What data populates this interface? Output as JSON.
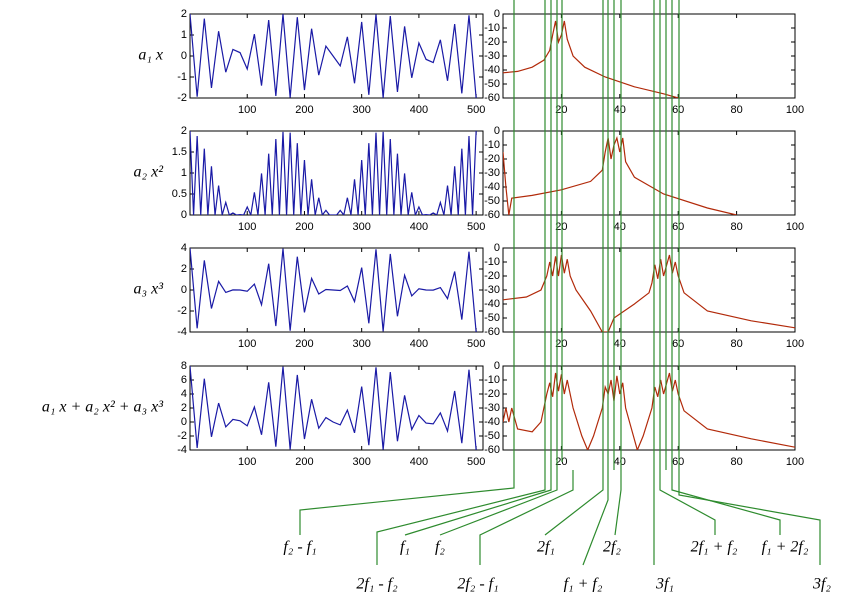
{
  "chart_data": [
    {
      "type": "line",
      "ylabel": "a₁ x",
      "color": "#1a1aa6",
      "xlim": [
        0,
        512
      ],
      "ylim": [
        -2,
        2
      ],
      "xticks": [
        100,
        200,
        300,
        400,
        500
      ],
      "yticks": [
        -2,
        -1,
        0,
        1,
        2
      ],
      "x": [
        0,
        12.5,
        25,
        37.5,
        50,
        62.5,
        75,
        87.5,
        100,
        112.5,
        125,
        137.5,
        150,
        162.5,
        175,
        187.5,
        200,
        212.5,
        225,
        237.5,
        250,
        262.5,
        275,
        287.5,
        300,
        312.5,
        325,
        337.5,
        350,
        362.5,
        375,
        387.5,
        400,
        412.5,
        425,
        437.5,
        450,
        462.5,
        475,
        487.5,
        500
      ],
      "values": [
        2,
        -1.94,
        1.78,
        -1.52,
        1.18,
        -0.77,
        0.31,
        0.16,
        -0.62,
        1.04,
        -1.41,
        1.71,
        -1.9,
        1.99,
        -1.98,
        1.85,
        -1.62,
        1.3,
        -0.91,
        0.47,
        0,
        -0.47,
        0.91,
        -1.3,
        1.62,
        -1.85,
        1.98,
        -1.99,
        1.9,
        -1.71,
        1.41,
        -1.04,
        0.62,
        -0.16,
        -0.31,
        0.77,
        -1.18,
        1.52,
        -1.78,
        1.94,
        -2
      ]
    },
    {
      "type": "line",
      "color": "#b22a0a",
      "xlim": [
        0,
        100
      ],
      "ylim": [
        -60,
        0
      ],
      "xticks": [
        20,
        40,
        60,
        80,
        100
      ],
      "yticks": [
        0,
        -10,
        -20,
        -30,
        -40,
        -50,
        -60
      ],
      "x": [
        0,
        5,
        10,
        14,
        16,
        17,
        18,
        19,
        20,
        21,
        22,
        24,
        28,
        35,
        45,
        55,
        60
      ],
      "values": [
        -42,
        -41,
        -38,
        -33,
        -26,
        -15,
        -5,
        -20,
        -15,
        -5,
        -18,
        -30,
        -38,
        -45,
        -52,
        -57,
        -60
      ]
    },
    {
      "type": "line",
      "ylabel": "a₂ x²",
      "color": "#1a1aa6",
      "xlim": [
        0,
        512
      ],
      "ylim": [
        0,
        2
      ],
      "xticks": [
        100,
        200,
        300,
        400,
        500
      ],
      "yticks": [
        0,
        0.5,
        1,
        1.5,
        2
      ],
      "x": [
        0,
        6.25,
        12.5,
        18.75,
        25,
        31.25,
        37.5,
        43.75,
        50,
        56.25,
        62.5,
        68.75,
        75,
        81.25,
        87.5,
        93.75,
        100,
        106.25,
        112.5,
        118.75,
        125,
        131.25,
        137.5,
        143.75,
        150,
        156.25,
        162.5,
        168.75,
        175,
        181.25,
        187.5,
        193.75,
        200,
        206.25,
        212.5,
        218.75,
        225,
        231.25,
        237.5,
        243.75,
        250,
        256.25,
        262.5,
        268.75,
        275,
        281.25,
        287.5,
        293.75,
        300,
        306.25,
        312.5,
        318.75,
        325,
        331.25,
        337.5,
        343.75,
        350,
        356.25,
        362.5,
        368.75,
        375,
        381.25,
        387.5,
        393.75,
        400,
        406.25,
        412.5,
        418.75,
        425,
        431.25,
        437.5,
        443.75,
        450,
        456.25,
        462.5,
        468.75,
        475,
        481.25,
        487.5,
        493.75,
        500
      ],
      "values": [
        2,
        0,
        1.88,
        0,
        1.58,
        0,
        1.16,
        0,
        0.7,
        0,
        0.3,
        0,
        0.05,
        0,
        0.01,
        0,
        0.19,
        0,
        0.54,
        0,
        0.99,
        0,
        1.46,
        0,
        1.81,
        0,
        1.98,
        0,
        1.96,
        0,
        1.71,
        0,
        1.31,
        0,
        0.85,
        0,
        0.41,
        0,
        0.11,
        0,
        0,
        0,
        0.11,
        0,
        0.41,
        0,
        0.85,
        0,
        1.31,
        0,
        1.71,
        0,
        1.96,
        0,
        1.98,
        0,
        1.81,
        0,
        1.46,
        0,
        0.99,
        0,
        0.54,
        0,
        0.19,
        0,
        0.01,
        0,
        0.05,
        0,
        0.3,
        0,
        0.7,
        0,
        1.16,
        0,
        1.58,
        0,
        1.88,
        0,
        2
      ]
    },
    {
      "type": "line",
      "color": "#b22a0a",
      "xlim": [
        0,
        100
      ],
      "ylim": [
        -60,
        0
      ],
      "xticks": [
        20,
        40,
        60,
        80,
        100
      ],
      "yticks": [
        0,
        -10,
        -20,
        -30,
        -40,
        -50,
        -60
      ],
      "x": [
        0,
        1,
        2,
        3,
        10,
        20,
        30,
        34,
        35,
        36,
        37,
        38,
        39,
        40,
        41,
        42,
        45,
        55,
        70,
        80
      ],
      "values": [
        -15,
        -40,
        -60,
        -48,
        -46,
        -42,
        -36,
        -28,
        -15,
        -5,
        -20,
        -10,
        -5,
        -15,
        -5,
        -22,
        -33,
        -45,
        -55,
        -60
      ]
    },
    {
      "type": "line",
      "ylabel": "a₃ x³",
      "color": "#1a1aa6",
      "xlim": [
        0,
        512
      ],
      "ylim": [
        -4,
        4
      ],
      "xticks": [
        100,
        200,
        300,
        400,
        500
      ],
      "yticks": [
        -4,
        -2,
        0,
        2,
        4
      ],
      "x": [
        0,
        12.5,
        25,
        37.5,
        50,
        62.5,
        75,
        87.5,
        100,
        112.5,
        125,
        137.5,
        150,
        162.5,
        175,
        187.5,
        200,
        212.5,
        225,
        237.5,
        250,
        262.5,
        275,
        287.5,
        300,
        312.5,
        325,
        337.5,
        350,
        362.5,
        375,
        387.5,
        400,
        412.5,
        425,
        437.5,
        450,
        462.5,
        475,
        487.5,
        500
      ],
      "values": [
        4,
        -3.65,
        2.82,
        -1.76,
        0.82,
        -0.23,
        0.01,
        0,
        -0.12,
        0.56,
        -1.4,
        2.5,
        -3.43,
        3.94,
        -3.88,
        3.17,
        -2.13,
        1.1,
        -0.38,
        0.05,
        0,
        -0.05,
        0.38,
        -1.1,
        2.13,
        -3.17,
        3.88,
        -3.94,
        3.43,
        -2.5,
        1.4,
        -0.56,
        0.12,
        0,
        -0.01,
        0.23,
        -0.82,
        1.76,
        -2.82,
        3.65,
        -4
      ]
    },
    {
      "type": "line",
      "color": "#b22a0a",
      "xlim": [
        0,
        100
      ],
      "ylim": [
        -60,
        0
      ],
      "xticks": [
        20,
        40,
        60,
        80,
        100
      ],
      "yticks": [
        0,
        -10,
        -20,
        -30,
        -40,
        -50,
        -60
      ],
      "x": [
        0,
        8,
        13,
        15,
        16,
        17,
        18,
        19,
        20,
        21,
        22,
        23,
        25,
        30,
        34,
        36,
        38,
        45,
        50,
        51,
        52,
        53,
        54,
        55,
        57,
        58,
        59,
        60,
        62,
        70,
        85,
        100
      ],
      "values": [
        -37,
        -35,
        -30,
        -20,
        -10,
        -20,
        -6,
        -20,
        -5,
        -18,
        -8,
        -20,
        -30,
        -45,
        -60,
        -60,
        -50,
        -40,
        -32,
        -25,
        -12,
        -22,
        -8,
        -20,
        -5,
        -18,
        -10,
        -20,
        -32,
        -45,
        -52,
        -57
      ]
    },
    {
      "type": "line",
      "ylabel": "a₁ x + a₂ x² + a₃ x³",
      "color": "#1a1aa6",
      "xlim": [
        0,
        512
      ],
      "ylim": [
        -4,
        8
      ],
      "xticks": [
        100,
        200,
        300,
        400,
        500
      ],
      "yticks": [
        -4,
        -2,
        0,
        2,
        4,
        6,
        8
      ],
      "x": [
        0,
        12.5,
        25,
        37.5,
        50,
        62.5,
        75,
        87.5,
        100,
        112.5,
        125,
        137.5,
        150,
        162.5,
        175,
        187.5,
        200,
        212.5,
        225,
        237.5,
        250,
        262.5,
        275,
        287.5,
        300,
        312.5,
        325,
        337.5,
        350,
        362.5,
        375,
        387.5,
        400,
        412.5,
        425,
        437.5,
        450,
        462.5,
        475,
        487.5,
        500
      ],
      "values": [
        8,
        -3.71,
        6.18,
        -2.12,
        2.7,
        -0.7,
        0.37,
        0.17,
        -0.55,
        2.14,
        -1.82,
        5.67,
        -3.52,
        7.91,
        -3.9,
        6.73,
        -2.44,
        3.25,
        -0.88,
        0.63,
        0,
        -0.41,
        1.7,
        -1.55,
        5.06,
        -3.31,
        7.82,
        -3.95,
        7.14,
        -2.75,
        3.8,
        -1.06,
        0.93,
        -0.15,
        -0.27,
        1.3,
        -1.3,
        4.44,
        -3.02,
        7.47,
        -4
      ]
    },
    {
      "type": "line",
      "color": "#b22a0a",
      "xlim": [
        0,
        100
      ],
      "ylim": [
        -60,
        0
      ],
      "xticks": [
        20,
        40,
        60,
        80,
        100
      ],
      "yticks": [
        0,
        -10,
        -20,
        -30,
        -40,
        -50,
        -60
      ],
      "x": [
        0,
        1,
        2,
        3,
        5,
        10,
        13,
        15,
        16,
        17,
        18,
        19,
        20,
        21,
        22,
        24,
        27,
        29,
        31,
        34,
        35,
        36,
        37,
        38,
        39,
        40,
        41,
        42,
        44,
        46,
        48,
        51,
        52,
        53,
        54,
        55,
        57,
        58,
        59,
        60,
        62,
        70,
        85,
        100
      ],
      "values": [
        -40,
        -30,
        -40,
        -30,
        -45,
        -47,
        -40,
        -20,
        -12,
        -22,
        -5,
        -18,
        -6,
        -20,
        -10,
        -30,
        -50,
        -60,
        -50,
        -30,
        -15,
        -20,
        -10,
        -25,
        -7,
        -20,
        -12,
        -30,
        -45,
        -60,
        -50,
        -30,
        -15,
        -22,
        -10,
        -20,
        -5,
        -18,
        -10,
        -20,
        -32,
        -45,
        -52,
        -58
      ]
    }
  ],
  "annotations": [
    "f₂ - f₁",
    "f₁",
    "f₂",
    "2f₁",
    "2f₂",
    "2f₁ + f₂",
    "f₁ + 2f₂",
    "2f₁ - f₂",
    "2f₂ - f₁",
    "f₁ + f₂",
    "3f₁",
    "3f₂"
  ]
}
